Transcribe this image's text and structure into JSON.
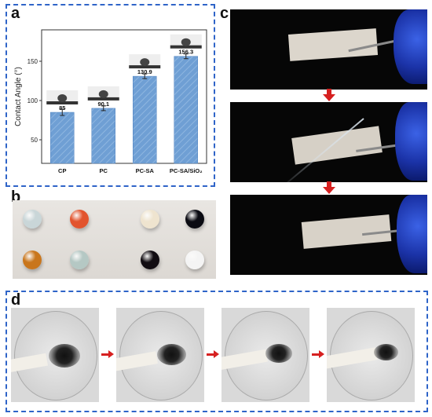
{
  "figure": {
    "panel_labels": {
      "a": "a",
      "b": "b",
      "c": "c",
      "d": "d"
    }
  },
  "chart_data": {
    "type": "bar",
    "categories": [
      "CP",
      "PC",
      "PC-SA",
      "PC-SA/SiO₂"
    ],
    "values": [
      85,
      90.1,
      130.9,
      156.3
    ],
    "data_labels": [
      "85",
      "90.1",
      "130.9",
      "156.3"
    ],
    "error": [
      4,
      3,
      3,
      3
    ],
    "ylabel": "Contact Angle (°)",
    "ylim": [
      20,
      190
    ],
    "yticks": [
      50,
      100,
      150
    ],
    "ytick_labels": [
      "50",
      "100",
      "150"
    ],
    "bar_color": "#6f9fd4",
    "grid": false
  },
  "colors": {
    "frame": "#2f64c8",
    "arrow": "#d62020",
    "bar": "#6f9fd4"
  },
  "panel_b": {
    "droplets": [
      {
        "color": "#c9d6d8",
        "kind": "clear"
      },
      {
        "color": "#e2542e",
        "kind": "orange-red"
      },
      {
        "color": "#efe4cf",
        "kind": "cream"
      },
      {
        "color": "#0b0b12",
        "kind": "black"
      },
      {
        "color": "#c9761c",
        "kind": "amber"
      },
      {
        "color": "#b5c8c4",
        "kind": "clear-teal"
      },
      {
        "color": "#120d12",
        "kind": "black"
      },
      {
        "color": "#f4f4f4",
        "kind": "white"
      }
    ]
  }
}
